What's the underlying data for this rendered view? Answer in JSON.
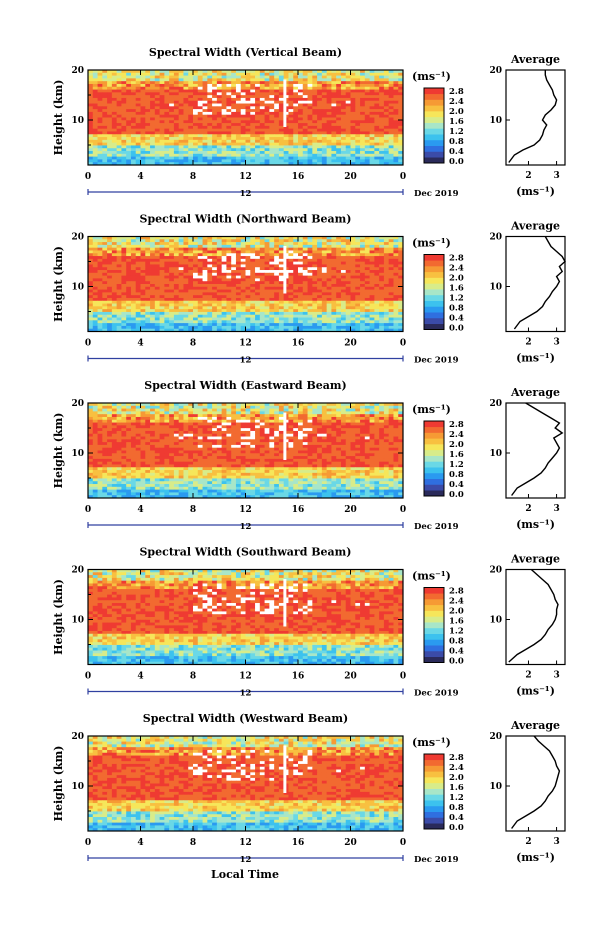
{
  "figure": {
    "xlabel": "Local Time",
    "date_label": "Dec 2019",
    "day_label": "12",
    "colorbar_unit": "(ms⁻¹)",
    "colorbar_ticks": [
      "0.0",
      "0.4",
      "0.8",
      "1.2",
      "1.6",
      "2.0",
      "2.4",
      "2.8"
    ],
    "colorbar_colors": [
      "#2a2a5a",
      "#3b4ba8",
      "#2f6fe0",
      "#2a9af0",
      "#3cc2ee",
      "#6ad8e6",
      "#a8e6c8",
      "#d8ec8a",
      "#f6e65a",
      "#f8c040",
      "#f69a34",
      "#f26a30",
      "#ef3a32"
    ],
    "avg_title": "Average",
    "avg_xlabel": "(ms⁻¹)"
  },
  "chart_data": [
    {
      "type": "heatmap",
      "title": "Spectral Width (Vertical Beam)",
      "ylabel": "Height (km)",
      "xlim": [
        0,
        24
      ],
      "ylim": [
        1,
        20
      ],
      "xticks": [
        "0",
        "4",
        "8",
        "12",
        "16",
        "20",
        "0"
      ],
      "yticks": [
        "10",
        "20"
      ],
      "colorbar_range": [
        0.0,
        2.8
      ],
      "average": {
        "title": "Average",
        "xlabel": "(ms⁻¹)",
        "xticks": [
          "2",
          "3"
        ],
        "yticks": [
          "10",
          "20"
        ],
        "height": [
          1.5,
          3,
          4,
          5,
          6,
          7,
          8,
          9,
          10,
          11,
          12,
          13,
          14,
          15,
          16,
          17,
          18,
          19,
          20
        ],
        "value": [
          1.3,
          1.5,
          1.8,
          2.2,
          2.4,
          2.5,
          2.55,
          2.65,
          2.5,
          2.6,
          2.8,
          2.95,
          3.0,
          2.9,
          2.85,
          2.75,
          2.65,
          2.6,
          2.6
        ]
      }
    },
    {
      "type": "heatmap",
      "title": "Spectral Width (Northward Beam)",
      "ylabel": "Height (km)",
      "xlim": [
        0,
        24
      ],
      "ylim": [
        1,
        20
      ],
      "xticks": [
        "0",
        "4",
        "8",
        "12",
        "16",
        "20",
        "0"
      ],
      "yticks": [
        "10",
        "20"
      ],
      "colorbar_range": [
        0.0,
        2.8
      ],
      "average": {
        "title": "Average",
        "xlabel": "(ms⁻¹)",
        "xticks": [
          "2",
          "3"
        ],
        "yticks": [
          "10",
          "20"
        ],
        "height": [
          1.5,
          3,
          4,
          5,
          6,
          7,
          8,
          9,
          10,
          11,
          12,
          13,
          14,
          15,
          16,
          17,
          18,
          19,
          20
        ],
        "value": [
          1.5,
          1.7,
          2.0,
          2.3,
          2.5,
          2.6,
          2.75,
          2.85,
          3.0,
          3.1,
          3.0,
          3.2,
          3.1,
          3.3,
          3.2,
          3.0,
          2.8,
          2.7,
          2.6
        ]
      }
    },
    {
      "type": "heatmap",
      "title": "Spectral Width (Eastward Beam)",
      "ylabel": "Height (km)",
      "xlim": [
        0,
        24
      ],
      "ylim": [
        1,
        20
      ],
      "xticks": [
        "0",
        "4",
        "8",
        "12",
        "16",
        "20",
        "0"
      ],
      "yticks": [
        "10",
        "20"
      ],
      "colorbar_range": [
        0.0,
        2.8
      ],
      "average": {
        "title": "Average",
        "xlabel": "(ms⁻¹)",
        "xticks": [
          "2",
          "3"
        ],
        "yticks": [
          "10",
          "20"
        ],
        "height": [
          1.5,
          3,
          4,
          5,
          6,
          7,
          8,
          9,
          10,
          11,
          12,
          13,
          14,
          15,
          16,
          17,
          18,
          19,
          20
        ],
        "value": [
          1.4,
          1.6,
          1.9,
          2.2,
          2.45,
          2.6,
          2.7,
          2.85,
          3.0,
          3.1,
          3.0,
          2.9,
          3.2,
          2.95,
          3.1,
          2.8,
          2.5,
          2.2,
          1.9
        ]
      }
    },
    {
      "type": "heatmap",
      "title": "Spectral Width (Southward Beam)",
      "ylabel": "Height (km)",
      "xlim": [
        0,
        24
      ],
      "ylim": [
        1,
        20
      ],
      "xticks": [
        "0",
        "4",
        "8",
        "12",
        "16",
        "20",
        "0"
      ],
      "yticks": [
        "10",
        "20"
      ],
      "colorbar_range": [
        0.0,
        2.8
      ],
      "average": {
        "title": "Average",
        "xlabel": "(ms⁻¹)",
        "xticks": [
          "2",
          "3"
        ],
        "yticks": [
          "10",
          "20"
        ],
        "height": [
          1.5,
          3,
          4,
          5,
          6,
          7,
          8,
          9,
          10,
          11,
          12,
          13,
          14,
          15,
          16,
          17,
          18,
          19,
          20
        ],
        "value": [
          1.3,
          1.6,
          1.9,
          2.2,
          2.45,
          2.6,
          2.7,
          2.85,
          2.95,
          3.0,
          3.0,
          3.05,
          2.95,
          2.9,
          2.8,
          2.7,
          2.5,
          2.3,
          2.1
        ]
      }
    },
    {
      "type": "heatmap",
      "title": "Spectral Width (Westward Beam)",
      "ylabel": "Height (km)",
      "xlim": [
        0,
        24
      ],
      "ylim": [
        1,
        20
      ],
      "xticks": [
        "0",
        "4",
        "8",
        "12",
        "16",
        "20",
        "0"
      ],
      "yticks": [
        "10",
        "20"
      ],
      "colorbar_range": [
        0.0,
        2.8
      ],
      "average": {
        "title": "Average",
        "xlabel": "(ms⁻¹)",
        "xticks": [
          "2",
          "3"
        ],
        "yticks": [
          "10",
          "20"
        ],
        "height": [
          1.5,
          3,
          4,
          5,
          6,
          7,
          8,
          9,
          10,
          11,
          12,
          13,
          14,
          15,
          16,
          17,
          18,
          19,
          20
        ],
        "value": [
          1.4,
          1.6,
          1.9,
          2.2,
          2.45,
          2.6,
          2.7,
          2.85,
          2.95,
          3.0,
          3.05,
          3.1,
          3.0,
          2.95,
          2.85,
          2.75,
          2.55,
          2.35,
          2.2
        ]
      }
    }
  ]
}
